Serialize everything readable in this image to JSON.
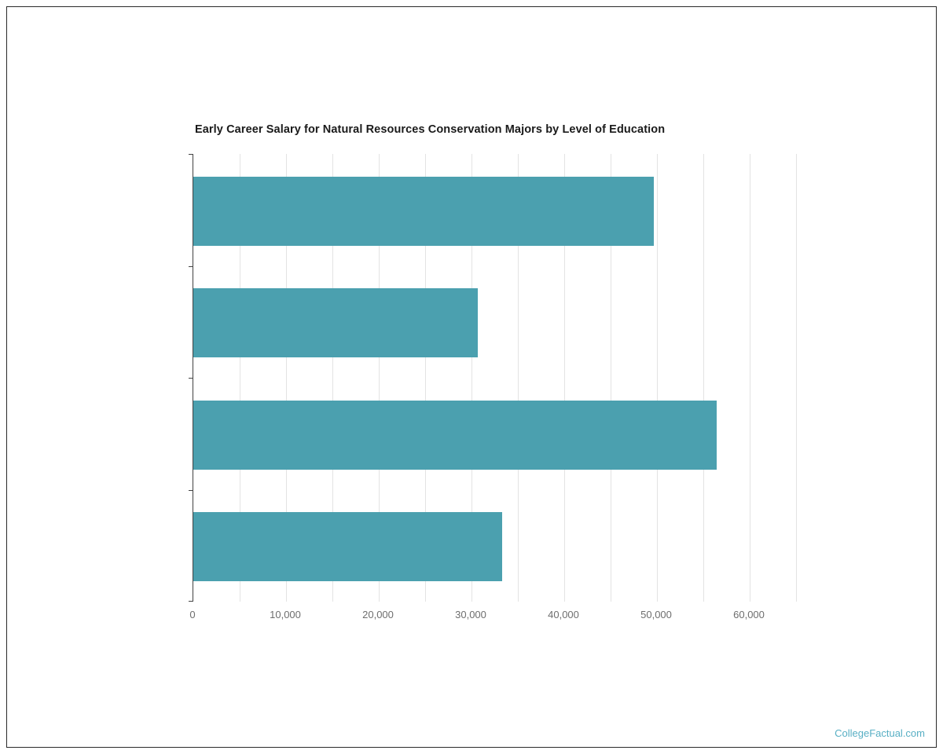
{
  "chart_data": {
    "type": "bar",
    "orientation": "horizontal",
    "title": "Early Career Salary for Natural Resources Conservation Majors by Level of Education",
    "categories": [
      "",
      "",
      "",
      ""
    ],
    "values": [
      49700,
      30700,
      56400,
      33300
    ],
    "xlabel": "",
    "ylabel": "",
    "xlim": [
      0,
      65000
    ],
    "x_major_ticks": [
      0,
      10000,
      20000,
      30000,
      40000,
      50000,
      60000
    ],
    "x_tick_labels": [
      "0",
      "10,000",
      "20,000",
      "30,000",
      "40,000",
      "50,000",
      "60,000"
    ],
    "x_minor_grid_step": 5000,
    "grid": true,
    "legend": false,
    "bar_color": "#4BA0AF",
    "axis_color": "#424242",
    "gridline_color": "#e3e3e3"
  },
  "watermark": {
    "text": "CollegeFactual.com",
    "color": "#58AFC4"
  }
}
